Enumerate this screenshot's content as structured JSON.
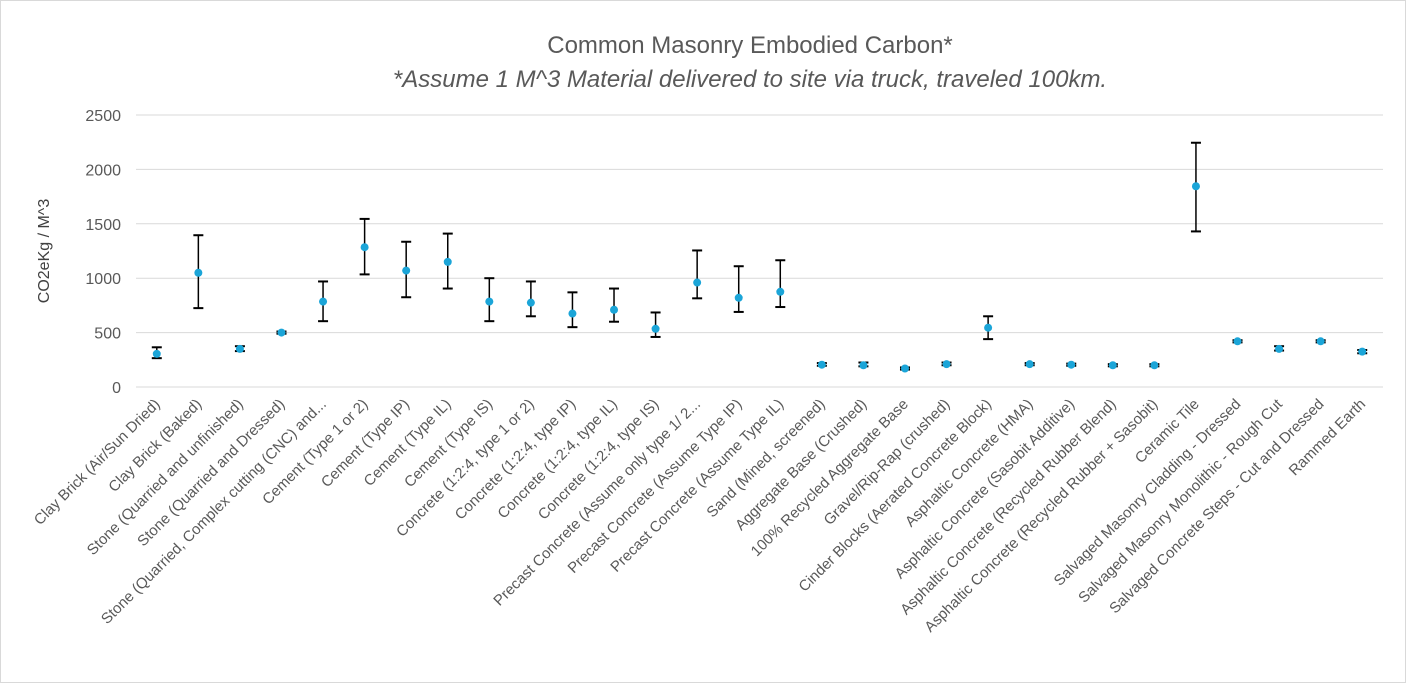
{
  "chart_data": {
    "type": "scatter",
    "title": "Common Masonry Embodied Carbon*",
    "subtitle": "*Assume 1 M^3 Material delivered to site via truck, traveled 100km.",
    "xlabel": "",
    "ylabel": "CO2eKg / M^3",
    "ylim": [
      0,
      2500
    ],
    "yticks": [
      0,
      500,
      1000,
      1500,
      2000,
      2500
    ],
    "grid": true,
    "legend": "none",
    "colors": {
      "point": "#1BA5D8",
      "error_bar": "#000000",
      "grid": "#d9d9d9",
      "text": "#595959"
    },
    "categories": [
      "Clay Brick (Air/Sun Dried)",
      "Clay Brick (Baked)",
      "Stone (Quarried and unfinished)",
      "Stone (Quarried and Dressed)",
      "Stone (Quarried, Complex cutting (CNC) and...",
      "Cement (Type 1 or 2)",
      "Cement (Type IP)",
      "Cement (Type IL)",
      "Cement (Type IS)",
      "Concrete (1:2:4, type 1 or 2)",
      "Concrete (1:2:4, type IP)",
      "Concrete (1:2:4, type IL)",
      "Concrete (1:2:4, type IS)",
      "Precast Concrete (Assume only type 1/ 2...",
      "Precast Concrete (Assume Type IP)",
      "Precast Concrete (Assume Type IL)",
      "Sand (Mined, screened)",
      "Aggregate Base (Crushed)",
      "100% Recycled Aggregate Base",
      "Gravel/Rip-Rap (crushed)",
      "Cinder Blocks (Aerated Concrete Block)",
      "Asphaltic Concrete (HMA)",
      "Asphaltic Concrete (Sasobit Additive)",
      "Asphaltic Concrete (Recycled Rubber Blend)",
      "Asphaltic Concrete (Recycled Rubber + Sasobit)",
      "Ceramic Tile",
      "Salvaged Masonry Cladding - Dressed",
      "Salvaged Masonry Monolithic - Rough Cut",
      "Salvaged Concrete Steps - Cut and Dressed",
      "Rammed Earth"
    ],
    "values": [
      305,
      1050,
      350,
      500,
      785,
      1285,
      1070,
      1150,
      785,
      775,
      675,
      710,
      535,
      960,
      820,
      875,
      205,
      200,
      170,
      210,
      545,
      210,
      205,
      200,
      200,
      1845,
      420,
      350,
      420,
      325
    ],
    "error_low": [
      265,
      725,
      330,
      490,
      605,
      1035,
      825,
      905,
      605,
      650,
      550,
      600,
      460,
      815,
      690,
      735,
      195,
      190,
      160,
      200,
      440,
      200,
      195,
      190,
      190,
      1430,
      410,
      335,
      410,
      310
    ],
    "error_high": [
      365,
      1395,
      375,
      510,
      970,
      1545,
      1335,
      1410,
      1000,
      970,
      870,
      905,
      685,
      1255,
      1110,
      1165,
      220,
      225,
      180,
      225,
      650,
      220,
      215,
      210,
      210,
      2245,
      430,
      375,
      430,
      340
    ]
  }
}
